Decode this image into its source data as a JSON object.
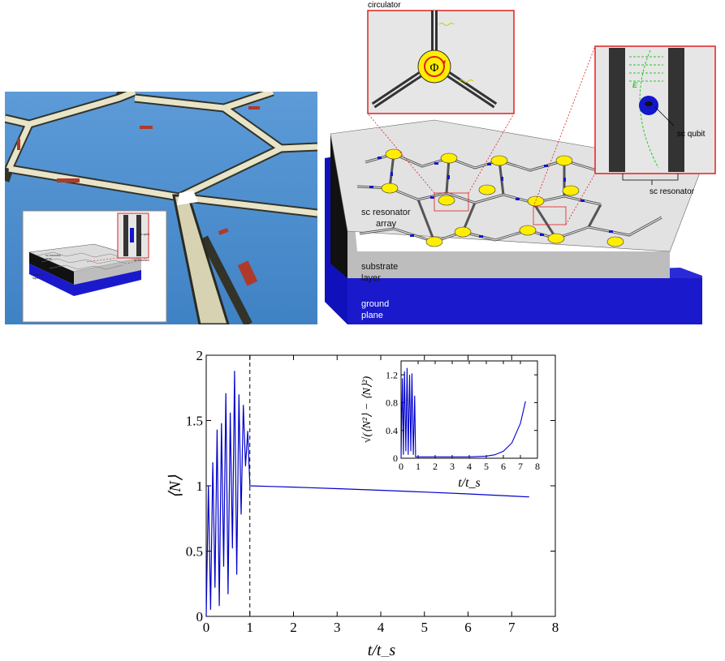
{
  "device": {
    "circulator_label": "circulator",
    "phi_symbol": "Φ",
    "field_label": "E",
    "qubit_label": "sc qubit",
    "resonator_label": "sc resonator",
    "array_label_line1": "sc resonator",
    "array_label_line2": "array",
    "substrate_line1": "substrate",
    "substrate_line2": "layer",
    "ground_line1": "ground",
    "ground_line2": "plane",
    "colors": {
      "substrate": "#c0c0c0",
      "ground": "#1a1acc",
      "node": "#ffee00",
      "callout": "#e02020",
      "field": "#22cc22",
      "qubit": "#1515cc"
    }
  },
  "photo": {
    "sky_color": "#4d8fcf",
    "inset": {
      "array_line1": "sc resonator",
      "array_line2": "array",
      "substrate_line1": "substrate",
      "substrate_line2": "layer",
      "ground_line1": "ground",
      "ground_line2": "plane",
      "qubit_label": "sc qubit",
      "resonator_label": "sc resonator"
    }
  },
  "chart_data": [
    {
      "type": "line",
      "xlabel": "t/t_s",
      "ylabel": "⟨N⟩",
      "xlim": [
        0,
        8
      ],
      "ylim": [
        0,
        2
      ],
      "xticks": [
        "0",
        "1",
        "2",
        "3",
        "4",
        "5",
        "6",
        "7",
        "8"
      ],
      "yticks": [
        "0",
        "0.5",
        "1",
        "1.5",
        "2"
      ],
      "vline_x": 1,
      "series": [
        {
          "color": "#0000cc",
          "x": [
            0,
            0.05,
            0.1,
            0.15,
            0.2,
            0.25,
            0.3,
            0.35,
            0.4,
            0.45,
            0.5,
            0.55,
            0.6,
            0.65,
            0.7,
            0.75,
            0.8,
            0.85,
            0.9,
            0.95,
            1.0,
            1.5,
            2,
            3,
            4,
            5,
            6,
            7,
            7.4
          ],
          "y": [
            0,
            1.0,
            0.05,
            1.18,
            0.22,
            1.43,
            0.08,
            1.48,
            0.38,
            1.71,
            0.17,
            1.56,
            0.52,
            1.88,
            0.32,
            1.7,
            0.78,
            1.62,
            1.15,
            1.42,
            1.0,
            0.995,
            0.99,
            0.978,
            0.966,
            0.952,
            0.938,
            0.922,
            0.915
          ]
        }
      ]
    },
    {
      "type": "line",
      "xlabel": "t/t_s",
      "ylabel": "√(⟨N²⟩ − ⟨N⟩²)",
      "xlim": [
        0,
        8
      ],
      "ylim": [
        0,
        1.4
      ],
      "xticks": [
        "0",
        "1",
        "2",
        "3",
        "4",
        "5",
        "6",
        "7",
        "8"
      ],
      "yticks": [
        "0",
        "0.4",
        "0.8",
        "1.2"
      ],
      "series": [
        {
          "color": "#0000cc",
          "x": [
            0,
            0.08,
            0.14,
            0.2,
            0.28,
            0.35,
            0.42,
            0.5,
            0.57,
            0.64,
            0.72,
            0.8,
            0.85,
            1,
            2,
            3,
            4,
            5,
            5.5,
            6,
            6.5,
            7,
            7.3
          ],
          "y": [
            0,
            1.15,
            0.05,
            1.25,
            0.1,
            1.3,
            0.05,
            1.2,
            0.1,
            1.22,
            0.05,
            0.9,
            0.02,
            0.02,
            0.02,
            0.02,
            0.02,
            0.03,
            0.05,
            0.1,
            0.22,
            0.5,
            0.82
          ]
        }
      ]
    }
  ]
}
